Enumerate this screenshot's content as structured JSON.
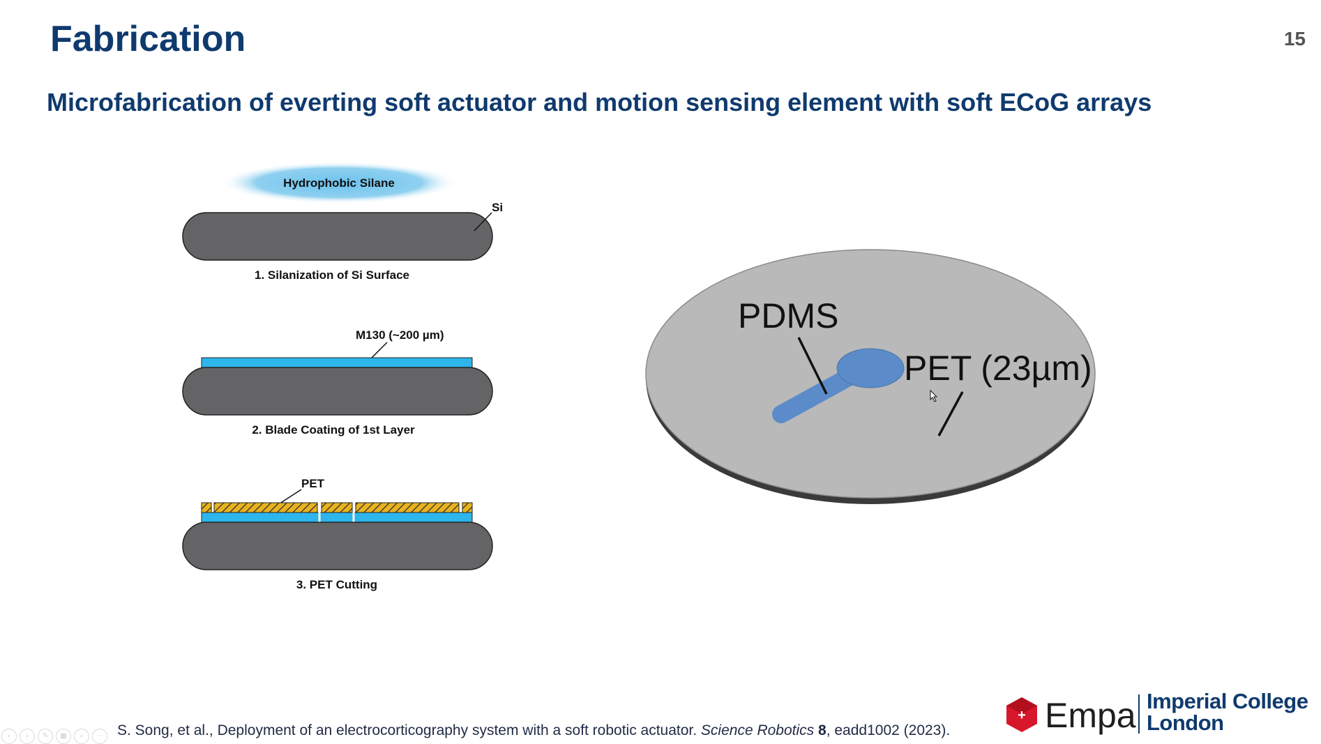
{
  "slide": {
    "title": "Fabrication",
    "page_number": "15",
    "subtitle": "Microfabrication of everting soft actuator and motion sensing element with soft ECoG arrays"
  },
  "left_diagram": {
    "silane_label": "Hydrophobic Silane",
    "si_label": "Si",
    "step1_caption": "1. Silanization of Si Surface",
    "m130_label": "M130 (~200 µm)",
    "step2_caption": "2. Blade Coating of 1st Layer",
    "pet_label": "PET",
    "step3_caption": "3. PET Cutting",
    "colors": {
      "wafer": "#646466",
      "coating": "#2db5ec",
      "silane": "#7dc8ee",
      "pet": "#e8b320"
    }
  },
  "right_diagram": {
    "pdms_label": "PDMS",
    "pet_label": "PET (23µm)",
    "colors": {
      "disk": "#b9b9b9",
      "actuator": "#5b8bc9"
    }
  },
  "citation": {
    "authors": "S. Song, et al., Deployment of an electrocorticography system with a soft robotic actuator. ",
    "journal": "Science Robotics",
    "volume": "8",
    "rest": ", eadd1002 (2023)."
  },
  "logos": {
    "empa": "Empa",
    "imperial_line1": "Imperial College",
    "imperial_line2": "London"
  }
}
